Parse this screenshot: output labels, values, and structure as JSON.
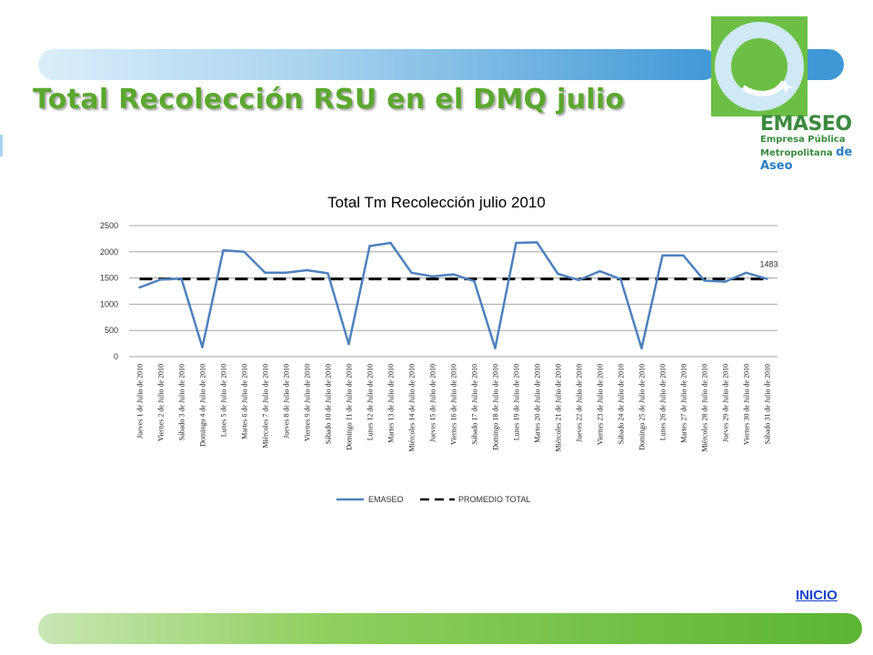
{
  "header": {
    "title": "Total Recolección RSU en el DMQ julio"
  },
  "logo": {
    "name": "EMASEO",
    "line1": "Empresa Pública",
    "line2a": "Metropolitana",
    "line2b": "de Aseo",
    "colors": {
      "green": "#6cbf45",
      "ring": "#cfe9f7",
      "dark_green": "#3b8a3f",
      "blue": "#2a7dc2"
    }
  },
  "footer": {
    "link_label": "INICIO"
  },
  "colors": {
    "title_green": "#5aa82e",
    "series": "#4f81bd",
    "average": "#000000",
    "band_blue": "#3f98d6",
    "band_green": "#5bb532"
  },
  "chart_data": {
    "type": "line",
    "title": "Total Tm Recolección julio 2010",
    "xlabel": "",
    "ylabel": "",
    "ylim": [
      0,
      2500
    ],
    "yticks": [
      0,
      500,
      1000,
      1500,
      2000,
      2500
    ],
    "grid": true,
    "legend": "bottom",
    "categories": [
      "Jueves 1 de Julio de 2010",
      "Viernes 2 de Julio de 2010",
      "Sábado 3 de Julio de 2010",
      "Domingo 4 de Julio de 2010",
      "Lunes 5 de Julio de 2010",
      "Martes 6 de Julio de 2010",
      "Miércoles 7 de Julio de 2010",
      "Jueves 8 de Julio de 2010",
      "Viernes 9 de Julio de 2010",
      "Sábado 10 de Julio de 2010",
      "Domingo 11 de Julio de 2010",
      "Lunes 12 de Julio de 2010",
      "Martes 13 de Julio de 2010",
      "Miércoles 14 de Julio de 2010",
      "Jueves 15 de Julio de 2010",
      "Viernes 16 de Julio de 2010",
      "Sábado 17 de Julio de 2010",
      "Domingo 18 de Julio de 2010",
      "Lunes 19 de Julio de 2010",
      "Martes 20 de Julio de 2010",
      "Miércoles 21 de Julio de 2010",
      "Jueves 22 de Julio de 2010",
      "Viernes 23 de Julio de 2010",
      "Sábado 24 de Julio de 2010",
      "Domingo 25 de Julio de 2010",
      "Lunes 26 de Julio de 2010",
      "Martes 27 de Julio de 2010",
      "Miércoles 28 de Julio de 2010",
      "Jueves 29 de Julio de 2010",
      "Viernes 30 de Julio de 2010",
      "Sábado 31 de Julio de 2010"
    ],
    "series": [
      {
        "name": "EMASEO",
        "values": [
          1320,
          1470,
          1490,
          180,
          2030,
          2000,
          1600,
          1600,
          1650,
          1590,
          240,
          2110,
          2170,
          1600,
          1530,
          1570,
          1440,
          160,
          2170,
          2180,
          1580,
          1460,
          1630,
          1480,
          160,
          1930,
          1930,
          1450,
          1430,
          1600,
          1483
        ],
        "last_label": "1483"
      },
      {
        "name": "PROMEDIO TOTAL",
        "values": [
          1483,
          1483,
          1483,
          1483,
          1483,
          1483,
          1483,
          1483,
          1483,
          1483,
          1483,
          1483,
          1483,
          1483,
          1483,
          1483,
          1483,
          1483,
          1483,
          1483,
          1483,
          1483,
          1483,
          1483,
          1483,
          1483,
          1483,
          1483,
          1483,
          1483,
          1483
        ]
      }
    ]
  }
}
